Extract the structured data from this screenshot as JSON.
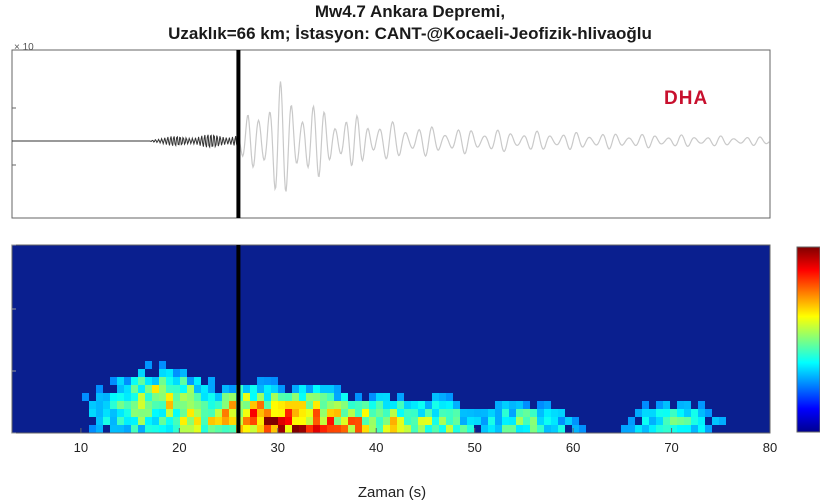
{
  "title_line1": "Mw4.7 Ankara Depremi,",
  "title_line2": "Uzaklık=66 km; İstasyon: CANT-@Kocaeli-Jeofizik-hlivaoğlu",
  "logo_text": "DHA",
  "exponent_label": "× 10",
  "colors": {
    "pre_event_trace": "#333333",
    "post_event_trace": "#c9c9c9",
    "marker": "#000000",
    "spectrogram_background": "#0a1f8f"
  },
  "chart_data": [
    {
      "type": "line",
      "panel": "waveform",
      "xlim": [
        3,
        80
      ],
      "event_marker_x": 26,
      "waveform_summary": [
        {
          "t": 3,
          "amp": 0.0
        },
        {
          "t": 17,
          "amp": 0.0
        },
        {
          "t": 17.5,
          "amp": 0.2
        },
        {
          "t": 20,
          "amp": 0.35
        },
        {
          "t": 23,
          "amp": 0.45
        },
        {
          "t": 26,
          "amp": 0.5
        },
        {
          "t": 27,
          "amp": 1.6
        },
        {
          "t": 28,
          "amp": 2.2
        },
        {
          "t": 29,
          "amp": 3.2
        },
        {
          "t": 30,
          "amp": 3.8
        },
        {
          "t": 31,
          "amp": 3.0
        },
        {
          "t": 33,
          "amp": 2.6
        },
        {
          "t": 35,
          "amp": 1.8
        },
        {
          "t": 38,
          "amp": 1.5
        },
        {
          "t": 42,
          "amp": 1.1
        },
        {
          "t": 47,
          "amp": 0.8
        },
        {
          "t": 55,
          "amp": 0.6
        },
        {
          "t": 65,
          "amp": 0.45
        },
        {
          "t": 75,
          "amp": 0.3
        },
        {
          "t": 80,
          "amp": 0.25
        }
      ]
    },
    {
      "type": "heatmap",
      "panel": "spectrogram",
      "xlabel": "Zaman (s)",
      "xlim": [
        3,
        80
      ],
      "xticks": [
        10,
        20,
        30,
        40,
        50,
        60,
        70,
        80
      ],
      "event_marker_x": 26,
      "intensity_summary": [
        {
          "t": 16,
          "freq_rel": 0.15,
          "level": 0.55
        },
        {
          "t": 18,
          "freq_rel": 0.2,
          "level": 0.6
        },
        {
          "t": 22,
          "freq_rel": 0.1,
          "level": 0.6
        },
        {
          "t": 27,
          "freq_rel": 0.1,
          "level": 0.85
        },
        {
          "t": 29,
          "freq_rel": 0.05,
          "level": 0.95
        },
        {
          "t": 31,
          "freq_rel": 0.05,
          "level": 1.0
        },
        {
          "t": 33,
          "freq_rel": 0.08,
          "level": 0.85
        },
        {
          "t": 36,
          "freq_rel": 0.05,
          "level": 0.8
        },
        {
          "t": 40,
          "freq_rel": 0.05,
          "level": 0.65
        },
        {
          "t": 45,
          "freq_rel": 0.05,
          "level": 0.55
        },
        {
          "t": 55,
          "freq_rel": 0.05,
          "level": 0.45
        },
        {
          "t": 70,
          "freq_rel": 0.05,
          "level": 0.4
        }
      ]
    }
  ]
}
